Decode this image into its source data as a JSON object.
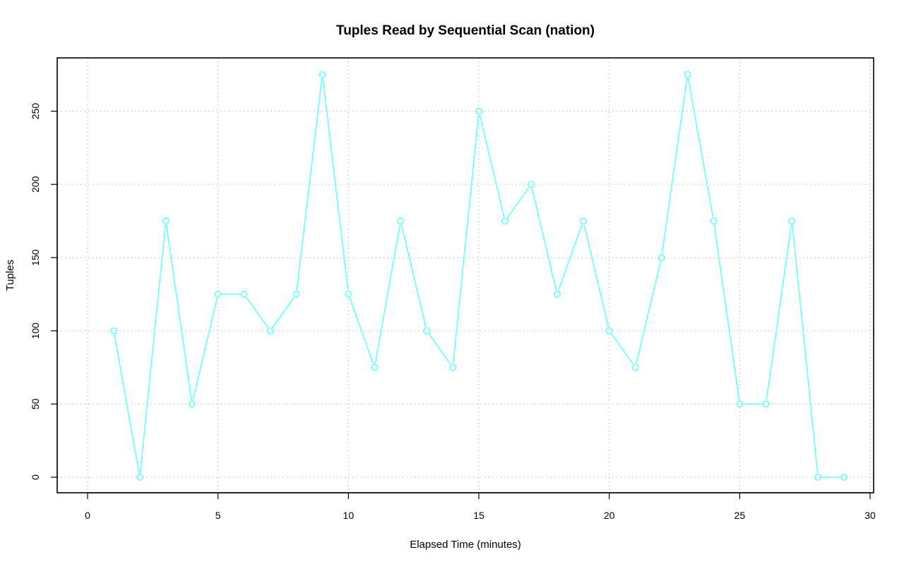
{
  "chart_data": {
    "type": "line",
    "title": "Tuples Read by Sequential Scan (nation)",
    "xlabel": "Elapsed Time (minutes)",
    "ylabel": "Tuples",
    "xlim": [
      0,
      30
    ],
    "ylim": [
      0,
      275
    ],
    "x_ticks": [
      0,
      5,
      10,
      15,
      20,
      25,
      30
    ],
    "y_ticks": [
      0,
      50,
      100,
      150,
      200,
      250
    ],
    "grid": true,
    "series_color": "#66FFFF",
    "series": [
      {
        "x": [
          1,
          2,
          3,
          4,
          5,
          6,
          7,
          8,
          9,
          10,
          11,
          12,
          13,
          14,
          15,
          16,
          17,
          18,
          19,
          20,
          21,
          22,
          23,
          24,
          25,
          26,
          27,
          28,
          29
        ],
        "values": [
          100,
          0,
          175,
          50,
          125,
          125,
          100,
          125,
          275,
          125,
          75,
          175,
          100,
          75,
          250,
          175,
          200,
          125,
          175,
          100,
          75,
          150,
          275,
          175,
          50,
          50,
          175,
          0,
          0
        ]
      }
    ]
  }
}
